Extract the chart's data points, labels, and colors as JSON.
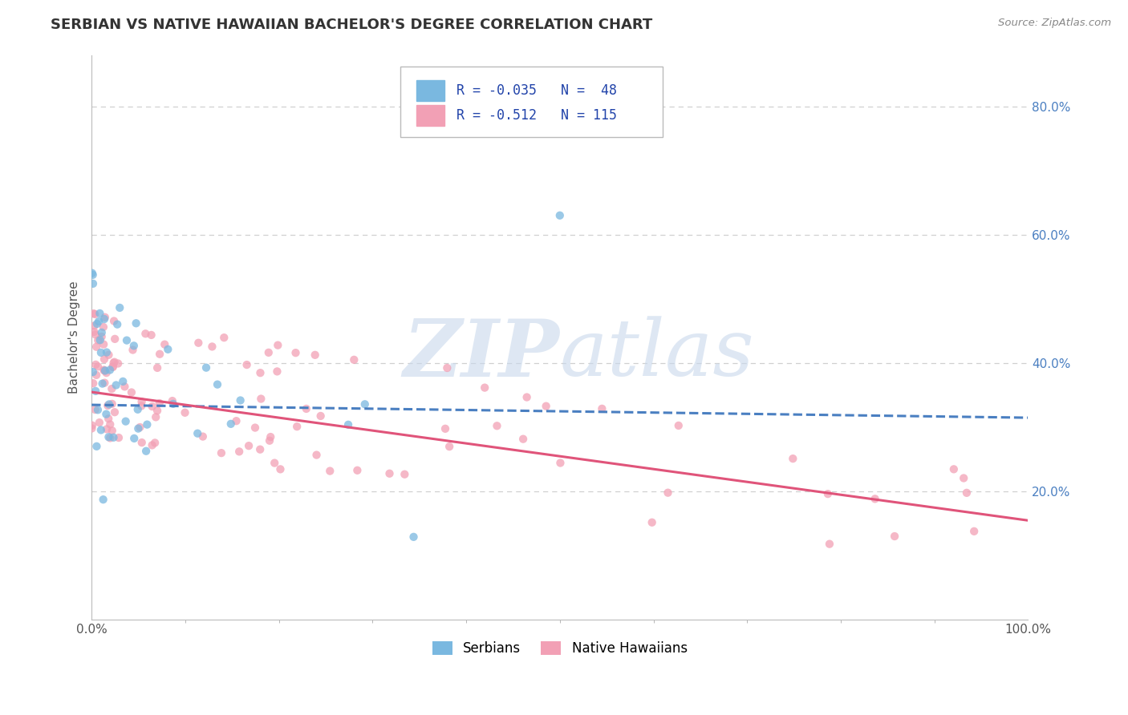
{
  "title": "SERBIAN VS NATIVE HAWAIIAN BACHELOR'S DEGREE CORRELATION CHART",
  "source": "Source: ZipAtlas.com",
  "ylabel": "Bachelor's Degree",
  "watermark_zip": "ZIP",
  "watermark_atlas": "atlas",
  "legend_serbian": {
    "R": -0.035,
    "N": 48,
    "label": "Serbians"
  },
  "legend_hawaiian": {
    "R": -0.512,
    "N": 115,
    "label": "Native Hawaiians"
  },
  "serbian_color": "#7ab8e0",
  "hawaiian_color": "#f2a0b5",
  "trend_serbian_color": "#4a7fc1",
  "trend_hawaiian_color": "#e0547a",
  "background_color": "#ffffff",
  "grid_color": "#d0d0d0",
  "ytick_values": [
    0.2,
    0.4,
    0.6,
    0.8
  ],
  "ytick_labels": [
    "20.0%",
    "40.0%",
    "60.0%",
    "80.0%"
  ],
  "ymax": 0.88,
  "ymin": 0.0,
  "xmax": 100,
  "xmin": 0,
  "serbian_trend_start_y": 0.335,
  "serbian_trend_end_y": 0.315,
  "hawaiian_trend_start_y": 0.355,
  "hawaiian_trend_end_y": 0.155
}
